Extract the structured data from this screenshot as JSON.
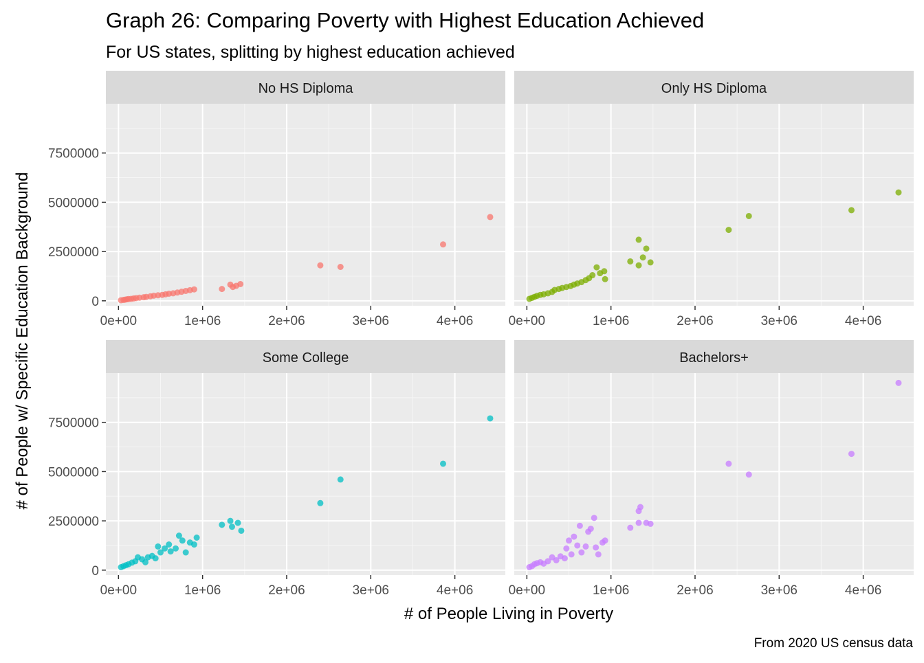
{
  "title": "Graph 26: Comparing Poverty with Highest Education Achieved",
  "subtitle": "For US states, splitting by highest education achieved",
  "xlabel": "# of People Living in Poverty",
  "ylabel": "# of People w/ Specific Education Background",
  "caption": "From 2020 US census data",
  "chart_data": {
    "type": "scatter",
    "facets": "2x2",
    "grid": true,
    "xlim": [
      -150000,
      4600000
    ],
    "ylim": [
      -250000,
      10000000
    ],
    "x_ticks": [
      0,
      1000000,
      2000000,
      3000000,
      4000000
    ],
    "x_tick_labels": [
      "0e+00",
      "1e+06",
      "2e+06",
      "3e+06",
      "4e+06"
    ],
    "y_ticks": [
      0,
      2500000,
      5000000,
      7500000
    ],
    "y_tick_labels": [
      "0",
      "2500000",
      "5000000",
      "7500000"
    ],
    "series": [
      {
        "name": "No HS Diploma",
        "color": "#F8766D",
        "points": [
          [
            30000,
            30000
          ],
          [
            60000,
            45000
          ],
          [
            80000,
            60000
          ],
          [
            100000,
            75000
          ],
          [
            120000,
            90000
          ],
          [
            150000,
            100000
          ],
          [
            180000,
            120000
          ],
          [
            210000,
            140000
          ],
          [
            250000,
            160000
          ],
          [
            300000,
            180000
          ],
          [
            330000,
            200000
          ],
          [
            380000,
            230000
          ],
          [
            420000,
            260000
          ],
          [
            470000,
            280000
          ],
          [
            520000,
            300000
          ],
          [
            560000,
            330000
          ],
          [
            600000,
            360000
          ],
          [
            650000,
            380000
          ],
          [
            700000,
            420000
          ],
          [
            750000,
            460000
          ],
          [
            800000,
            500000
          ],
          [
            850000,
            540000
          ],
          [
            900000,
            580000
          ],
          [
            1230000,
            600000
          ],
          [
            1330000,
            820000
          ],
          [
            1360000,
            700000
          ],
          [
            1400000,
            760000
          ],
          [
            1450000,
            850000
          ],
          [
            2400000,
            1800000
          ],
          [
            2640000,
            1720000
          ],
          [
            3860000,
            2860000
          ],
          [
            4420000,
            4250000
          ]
        ]
      },
      {
        "name": "Only HS Diploma",
        "color": "#7CAE00",
        "points": [
          [
            30000,
            100000
          ],
          [
            60000,
            150000
          ],
          [
            90000,
            200000
          ],
          [
            120000,
            250000
          ],
          [
            160000,
            300000
          ],
          [
            200000,
            330000
          ],
          [
            250000,
            380000
          ],
          [
            300000,
            450000
          ],
          [
            330000,
            550000
          ],
          [
            380000,
            600000
          ],
          [
            420000,
            650000
          ],
          [
            470000,
            700000
          ],
          [
            520000,
            750000
          ],
          [
            560000,
            820000
          ],
          [
            600000,
            880000
          ],
          [
            650000,
            950000
          ],
          [
            700000,
            1050000
          ],
          [
            740000,
            1150000
          ],
          [
            780000,
            1300000
          ],
          [
            830000,
            1700000
          ],
          [
            870000,
            1400000
          ],
          [
            920000,
            1500000
          ],
          [
            930000,
            1100000
          ],
          [
            1230000,
            2000000
          ],
          [
            1330000,
            3100000
          ],
          [
            1330000,
            1800000
          ],
          [
            1380000,
            2200000
          ],
          [
            1420000,
            2650000
          ],
          [
            1470000,
            1950000
          ],
          [
            2400000,
            3600000
          ],
          [
            2640000,
            4300000
          ],
          [
            3860000,
            4600000
          ],
          [
            4420000,
            5500000
          ]
        ]
      },
      {
        "name": "Some College",
        "color": "#00BFC4",
        "points": [
          [
            30000,
            150000
          ],
          [
            60000,
            200000
          ],
          [
            90000,
            250000
          ],
          [
            120000,
            300000
          ],
          [
            160000,
            380000
          ],
          [
            200000,
            450000
          ],
          [
            230000,
            650000
          ],
          [
            280000,
            550000
          ],
          [
            320000,
            400000
          ],
          [
            350000,
            650000
          ],
          [
            400000,
            720000
          ],
          [
            440000,
            600000
          ],
          [
            470000,
            1200000
          ],
          [
            500000,
            900000
          ],
          [
            550000,
            1100000
          ],
          [
            600000,
            1300000
          ],
          [
            620000,
            950000
          ],
          [
            680000,
            1100000
          ],
          [
            720000,
            1750000
          ],
          [
            760000,
            1500000
          ],
          [
            800000,
            900000
          ],
          [
            850000,
            1400000
          ],
          [
            900000,
            1300000
          ],
          [
            930000,
            1650000
          ],
          [
            1230000,
            2300000
          ],
          [
            1330000,
            2500000
          ],
          [
            1350000,
            2200000
          ],
          [
            1420000,
            2400000
          ],
          [
            1460000,
            2000000
          ],
          [
            2400000,
            3400000
          ],
          [
            2640000,
            4600000
          ],
          [
            3860000,
            5400000
          ],
          [
            4420000,
            7700000
          ]
        ]
      },
      {
        "name": "Bachelors+",
        "color": "#C77CFF",
        "points": [
          [
            30000,
            150000
          ],
          [
            60000,
            200000
          ],
          [
            90000,
            300000
          ],
          [
            120000,
            350000
          ],
          [
            160000,
            400000
          ],
          [
            200000,
            330000
          ],
          [
            250000,
            450000
          ],
          [
            300000,
            650000
          ],
          [
            350000,
            500000
          ],
          [
            400000,
            700000
          ],
          [
            450000,
            600000
          ],
          [
            470000,
            1100000
          ],
          [
            500000,
            1500000
          ],
          [
            530000,
            800000
          ],
          [
            560000,
            1700000
          ],
          [
            600000,
            1250000
          ],
          [
            630000,
            2250000
          ],
          [
            650000,
            900000
          ],
          [
            700000,
            1200000
          ],
          [
            730000,
            1950000
          ],
          [
            760000,
            2100000
          ],
          [
            800000,
            2650000
          ],
          [
            820000,
            1150000
          ],
          [
            850000,
            800000
          ],
          [
            900000,
            1400000
          ],
          [
            930000,
            1500000
          ],
          [
            1230000,
            2150000
          ],
          [
            1330000,
            2400000
          ],
          [
            1330000,
            3000000
          ],
          [
            1350000,
            3200000
          ],
          [
            1420000,
            2400000
          ],
          [
            1470000,
            2350000
          ],
          [
            2400000,
            5400000
          ],
          [
            2640000,
            4850000
          ],
          [
            3860000,
            5900000
          ],
          [
            4420000,
            9500000
          ]
        ]
      }
    ]
  }
}
